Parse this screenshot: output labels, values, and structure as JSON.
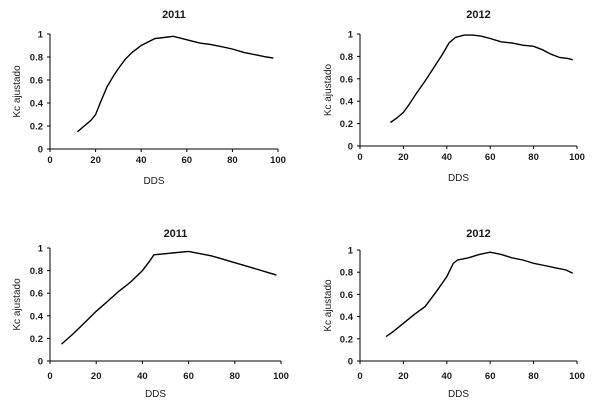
{
  "chart_data": [
    {
      "type": "line",
      "title": "2011",
      "xlabel": "DDS",
      "ylabel": "Kc ajustado",
      "xlim": [
        0,
        100
      ],
      "ylim": [
        0,
        1
      ],
      "xticks": [
        "0",
        "20",
        "40",
        "60",
        "80",
        "100"
      ],
      "yticks": [
        "0",
        "0.2",
        "0.4",
        "0.6",
        "0.8",
        "1"
      ],
      "grid": false,
      "series": [
        {
          "x": [
            12,
            15,
            18,
            20,
            22,
            25,
            28,
            30,
            33,
            36,
            40,
            43,
            46,
            50,
            54,
            58,
            62,
            66,
            70,
            75,
            80,
            85,
            90,
            95,
            98
          ],
          "y": [
            0.15,
            0.2,
            0.25,
            0.3,
            0.4,
            0.54,
            0.64,
            0.7,
            0.78,
            0.84,
            0.9,
            0.93,
            0.96,
            0.97,
            0.98,
            0.96,
            0.94,
            0.92,
            0.91,
            0.89,
            0.87,
            0.84,
            0.82,
            0.8,
            0.79
          ]
        }
      ]
    },
    {
      "type": "line",
      "title": "2012",
      "xlabel": "DDS",
      "ylabel": "Kc ajustado",
      "xlim": [
        0,
        100
      ],
      "ylim": [
        0,
        1
      ],
      "xticks": [
        "0",
        "20",
        "40",
        "60",
        "80",
        "100"
      ],
      "yticks": [
        "0",
        "0.2",
        "0.4",
        "0.6",
        "0.8",
        "1"
      ],
      "grid": false,
      "series": [
        {
          "x": [
            14,
            17,
            20,
            23,
            26,
            30,
            34,
            38,
            41,
            44,
            48,
            52,
            56,
            60,
            65,
            70,
            75,
            80,
            84,
            88,
            92,
            96,
            98
          ],
          "y": [
            0.21,
            0.25,
            0.3,
            0.38,
            0.47,
            0.58,
            0.7,
            0.82,
            0.92,
            0.97,
            0.99,
            0.99,
            0.98,
            0.96,
            0.93,
            0.92,
            0.9,
            0.89,
            0.86,
            0.82,
            0.79,
            0.78,
            0.77
          ]
        }
      ]
    },
    {
      "type": "line",
      "title": "2011",
      "xlabel": "DDS",
      "ylabel": "Kc ajustado",
      "xlim": [
        0,
        100
      ],
      "ylim": [
        0,
        1
      ],
      "xticks": [
        "0",
        "20",
        "40",
        "60",
        "80",
        "100"
      ],
      "yticks": [
        "0",
        "0.2",
        "0.4",
        "0.6",
        "0.8",
        "1"
      ],
      "grid": false,
      "series": [
        {
          "x": [
            5,
            10,
            15,
            20,
            25,
            30,
            35,
            40,
            43,
            45,
            50,
            55,
            60,
            65,
            70,
            75,
            80,
            85,
            90,
            95,
            98
          ],
          "y": [
            0.15,
            0.24,
            0.34,
            0.44,
            0.53,
            0.62,
            0.7,
            0.8,
            0.88,
            0.94,
            0.95,
            0.96,
            0.97,
            0.95,
            0.93,
            0.9,
            0.87,
            0.84,
            0.81,
            0.78,
            0.76
          ]
        }
      ]
    },
    {
      "type": "line",
      "title": "2012",
      "xlabel": "DDS",
      "ylabel": "Kc ajustado",
      "xlim": [
        0,
        100
      ],
      "ylim": [
        0,
        1
      ],
      "xticks": [
        "0",
        "20",
        "40",
        "60",
        "80",
        "100"
      ],
      "yticks": [
        "0",
        "0.2",
        "0.4",
        "0.6",
        "0.8",
        "1"
      ],
      "grid": false,
      "series": [
        {
          "x": [
            12,
            15,
            20,
            25,
            30,
            35,
            40,
            43,
            45,
            50,
            55,
            60,
            65,
            70,
            75,
            80,
            85,
            90,
            95,
            98
          ],
          "y": [
            0.22,
            0.26,
            0.34,
            0.42,
            0.49,
            0.62,
            0.76,
            0.88,
            0.91,
            0.93,
            0.96,
            0.98,
            0.96,
            0.93,
            0.91,
            0.88,
            0.86,
            0.84,
            0.82,
            0.79
          ]
        }
      ]
    }
  ]
}
